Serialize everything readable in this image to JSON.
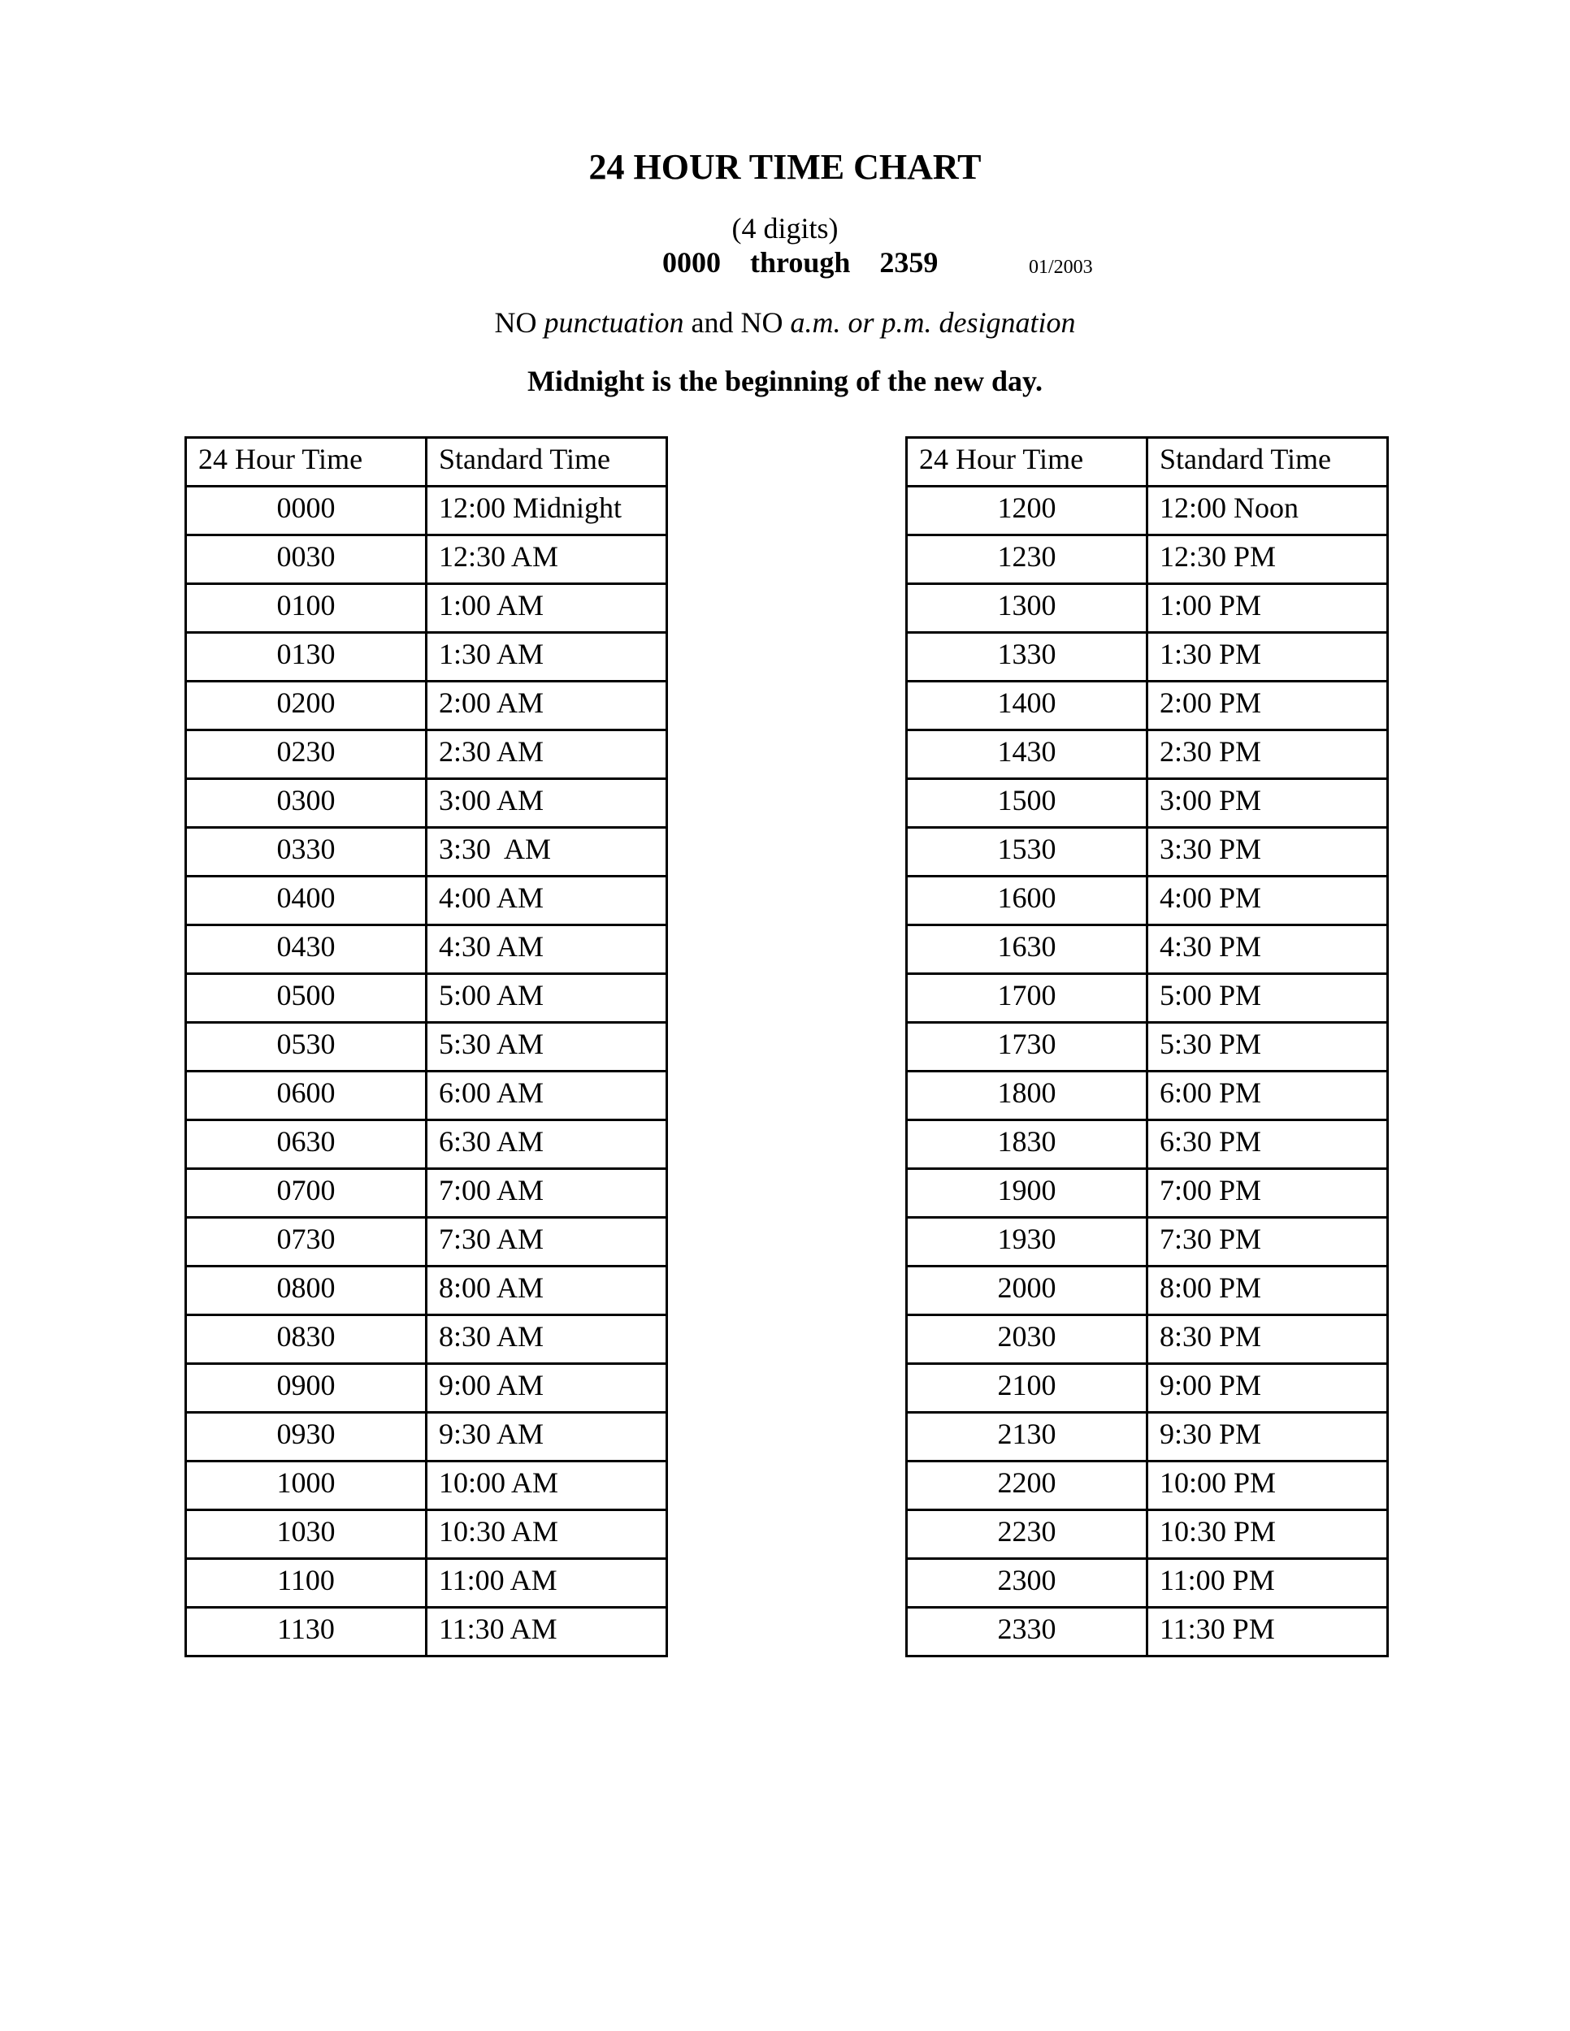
{
  "header": {
    "title": "24 HOUR TIME CHART",
    "subtitle": "(4 digits)",
    "range": "0000    through    2359",
    "date": "01/2003",
    "rule_parts": [
      "NO ",
      "punctuation",
      " and NO ",
      "a.m. or p.m. designation"
    ],
    "note": "Midnight is the beginning of the new day."
  },
  "columns": [
    "24 Hour Time",
    "Standard Time"
  ],
  "tables": [
    {
      "rows": [
        [
          "0000",
          "12:00 Midnight"
        ],
        [
          "0030",
          "12:30 AM"
        ],
        [
          "0100",
          "1:00 AM"
        ],
        [
          "0130",
          "1:30 AM"
        ],
        [
          "0200",
          "2:00 AM"
        ],
        [
          "0230",
          "2:30 AM"
        ],
        [
          "0300",
          "3:00 AM"
        ],
        [
          "0330",
          "3:30  AM"
        ],
        [
          "0400",
          "4:00 AM"
        ],
        [
          "0430",
          "4:30 AM"
        ],
        [
          "0500",
          "5:00 AM"
        ],
        [
          "0530",
          "5:30 AM"
        ],
        [
          "0600",
          "6:00 AM"
        ],
        [
          "0630",
          "6:30 AM"
        ],
        [
          "0700",
          "7:00 AM"
        ],
        [
          "0730",
          "7:30 AM"
        ],
        [
          "0800",
          "8:00 AM"
        ],
        [
          "0830",
          "8:30 AM"
        ],
        [
          "0900",
          "9:00 AM"
        ],
        [
          "0930",
          "9:30 AM"
        ],
        [
          "1000",
          "10:00 AM"
        ],
        [
          "1030",
          "10:30 AM"
        ],
        [
          "1100",
          "11:00 AM"
        ],
        [
          "1130",
          "11:30 AM"
        ]
      ]
    },
    {
      "rows": [
        [
          "1200",
          "12:00 Noon"
        ],
        [
          "1230",
          "12:30 PM"
        ],
        [
          "1300",
          "1:00 PM"
        ],
        [
          "1330",
          "1:30 PM"
        ],
        [
          "1400",
          "2:00 PM"
        ],
        [
          "1430",
          "2:30 PM"
        ],
        [
          "1500",
          "3:00 PM"
        ],
        [
          "1530",
          "3:30 PM"
        ],
        [
          "1600",
          "4:00 PM"
        ],
        [
          "1630",
          "4:30 PM"
        ],
        [
          "1700",
          "5:00 PM"
        ],
        [
          "1730",
          "5:30 PM"
        ],
        [
          "1800",
          "6:00 PM"
        ],
        [
          "1830",
          "6:30 PM"
        ],
        [
          "1900",
          "7:00 PM"
        ],
        [
          "1930",
          "7:30 PM"
        ],
        [
          "2000",
          "8:00 PM"
        ],
        [
          "2030",
          "8:30 PM"
        ],
        [
          "2100",
          "9:00 PM"
        ],
        [
          "2130",
          "9:30 PM"
        ],
        [
          "2200",
          "10:00 PM"
        ],
        [
          "2230",
          "10:30 PM"
        ],
        [
          "2300",
          "11:00 PM"
        ],
        [
          "2330",
          "11:30 PM"
        ]
      ]
    }
  ]
}
